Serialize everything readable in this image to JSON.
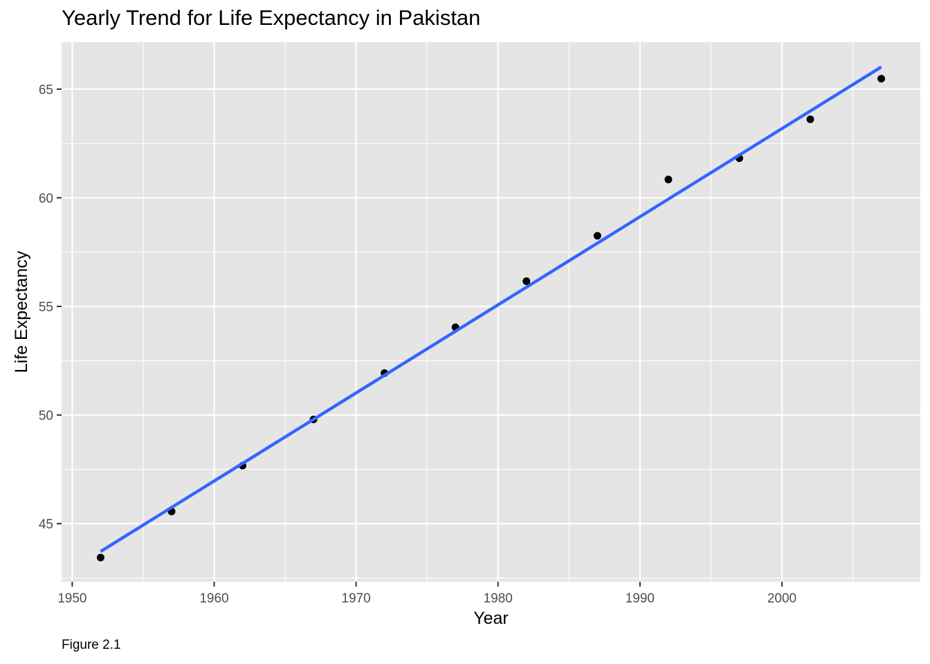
{
  "chart_data": {
    "type": "scatter",
    "title": "Yearly Trend for Life Expectancy in Pakistan",
    "xlabel": "Year",
    "ylabel": "Life Expectancy",
    "caption": "Figure 2.1",
    "x": [
      1952,
      1957,
      1962,
      1967,
      1972,
      1977,
      1982,
      1987,
      1992,
      1997,
      2002,
      2007
    ],
    "y": [
      43.44,
      45.56,
      47.67,
      49.8,
      51.93,
      54.04,
      56.16,
      58.25,
      60.84,
      61.82,
      63.61,
      65.48
    ],
    "trend_line": {
      "method": "linear",
      "x": [
        1952,
        2007
      ],
      "y": [
        43.72,
        66.02
      ],
      "color": "#3366FF"
    },
    "xlim": [
      1949.25,
      2009.75
    ],
    "ylim": [
      42.33,
      67.16
    ],
    "x_ticks": [
      1950,
      1960,
      1970,
      1980,
      1990,
      2000
    ],
    "x_tick_labels": [
      "1950",
      "1960",
      "1970",
      "1980",
      "1990",
      "2000"
    ],
    "y_ticks": [
      45,
      50,
      55,
      60,
      65
    ],
    "y_tick_labels": [
      "45",
      "50",
      "55",
      "60",
      "65"
    ],
    "grid": true,
    "colors": {
      "panel": "#E5E5E5",
      "grid": "#FFFFFF",
      "points": "#000000",
      "line": "#3366FF",
      "tick_text": "#4D4D4D",
      "axis_ticks": "#333333"
    }
  }
}
